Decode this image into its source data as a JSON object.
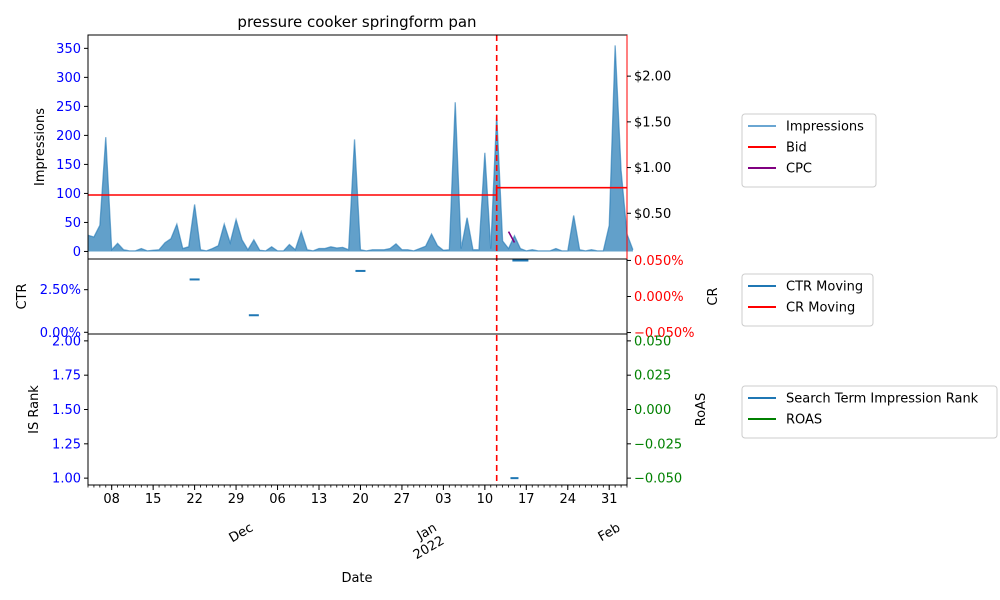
{
  "chart_data": {
    "type": "line",
    "title": "pressure cooker springform pan",
    "xlabel": "Date",
    "x_ticks": {
      "days": [
        "08",
        "15",
        "22",
        "29",
        "06",
        "13",
        "20",
        "27",
        "03",
        "10",
        "17",
        "24",
        "31"
      ],
      "months": [
        "Dec",
        "Jan\n2022",
        "Feb"
      ]
    },
    "panels": [
      {
        "name": "impressions-panel",
        "ylabel_left": "Impressions",
        "ylabel_right": "",
        "y_left_ticks": [
          "0",
          "50",
          "100",
          "150",
          "200",
          "250",
          "300",
          "350"
        ],
        "y_left_range": [
          -13,
          373
        ],
        "y_right_ticks": [
          "$0.50",
          "$1.00",
          "$1.50",
          "$2.00"
        ],
        "y_right_range": [
          0.0,
          2.45
        ],
        "legend": [
          "Impressions",
          "Bid",
          "CPC"
        ],
        "series": [
          {
            "name": "Impressions",
            "kind": "area",
            "color": "#1f77b4",
            "values": [
              28,
              25,
              45,
              197,
              3,
              14,
              3,
              1,
              1,
              5,
              1,
              2,
              3,
              15,
              22,
              47,
              5,
              8,
              81,
              3,
              1,
              5,
              10,
              47,
              15,
              55,
              20,
              3,
              20,
              2,
              1,
              8,
              1,
              1,
              12,
              3,
              34,
              3,
              1,
              5,
              5,
              8,
              6,
              7,
              3,
              193,
              3,
              1,
              3,
              3,
              3,
              5,
              13,
              3,
              3,
              1,
              5,
              9,
              30,
              10,
              2,
              3,
              257,
              5,
              58,
              3,
              3,
              170,
              5,
              236,
              18,
              5,
              27,
              5,
              1,
              3,
              1,
              1,
              1,
              5,
              1,
              1,
              62,
              3,
              1,
              3,
              1,
              1,
              45,
              355,
              140,
              30,
              3
            ]
          },
          {
            "name": "Bid",
            "kind": "step",
            "color": "#ff0000",
            "points": [
              [
                "2021-11-04",
                0.7
              ],
              [
                "2022-01-12",
                0.7
              ],
              [
                "2022-01-12",
                0.78
              ],
              [
                "2022-02-03",
                0.78
              ]
            ]
          },
          {
            "name": "CPC",
            "kind": "line",
            "color": "#800080",
            "points": [
              [
                "2022-01-14",
                0.3
              ],
              [
                "2022-01-15",
                0.18
              ]
            ]
          }
        ]
      },
      {
        "name": "ctr-panel",
        "ylabel_left": "CTR",
        "ylabel_right": "CR",
        "y_left_ticks": [
          "0.00%",
          "2.50%"
        ],
        "y_left_range": [
          -0.1,
          4.3
        ],
        "y_right_ticks": [
          "−0.050%",
          "0.000%",
          "0.050%"
        ],
        "y_right_range": [
          -0.052,
          0.052
        ],
        "legend": [
          "CTR Moving",
          "CR Moving"
        ],
        "series": [
          {
            "name": "CTR Moving",
            "kind": "marks",
            "color": "#1f77b4",
            "points": [
              [
                "2021-11-22",
                3.1
              ],
              [
                "2021-12-02",
                1.0
              ],
              [
                "2021-12-20",
                3.6
              ]
            ]
          },
          {
            "name": "CR Moving",
            "kind": "marks",
            "color": "#1f77b4",
            "axis": "right",
            "points": [
              [
                "2022-01-16",
                0.05
              ]
            ]
          }
        ]
      },
      {
        "name": "rank-panel",
        "ylabel_left": "IS Rank",
        "ylabel_right": "RoAS",
        "y_left_ticks": [
          "1.00",
          "1.25",
          "1.50",
          "1.75",
          "2.00"
        ],
        "y_left_range": [
          0.95,
          2.05
        ],
        "y_right_ticks": [
          "−0.050",
          "−0.025",
          "0.000",
          "0.025",
          "0.050"
        ],
        "y_right_range": [
          -0.055,
          0.055
        ],
        "legend": [
          "Search Term Impression Rank",
          "ROAS"
        ],
        "series": [
          {
            "name": "Search Term Impression Rank",
            "kind": "marks",
            "color": "#1f77b4",
            "points": [
              [
                "2022-01-15",
                1.0
              ]
            ]
          }
        ]
      }
    ],
    "x_range": [
      "2021-11-04",
      "2022-02-03"
    ],
    "vline": {
      "date": "2022-01-12",
      "color": "#ff0000",
      "style": "dashed"
    },
    "colors": {
      "left_axis": "#0000ff",
      "right_axis_top": "#000000",
      "right_axis_ctr": "#ff0000",
      "right_axis_rank": "#008000",
      "area": "#1f77b4"
    },
    "legends": [
      {
        "labels": [
          "Impressions",
          "Bid",
          "CPC"
        ],
        "colors": [
          "#6aa6d2",
          "#ff0000",
          "#800080"
        ]
      },
      {
        "labels": [
          "CTR Moving",
          "CR Moving"
        ],
        "colors": [
          "#1f77b4",
          "#ff0000"
        ]
      },
      {
        "labels": [
          "Search Term Impression Rank",
          "ROAS"
        ],
        "colors": [
          "#1f77b4",
          "#008000"
        ]
      }
    ]
  }
}
